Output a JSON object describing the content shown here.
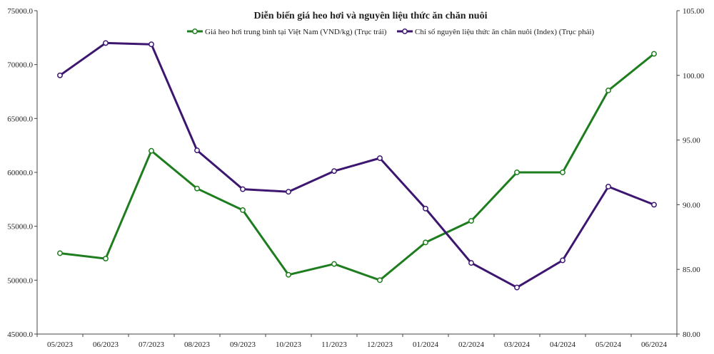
{
  "chart_data": {
    "type": "line",
    "title": "Diễn biến giá heo hơi và nguyên liệu thức ăn chăn nuôi",
    "categories": [
      "05/2023",
      "06/2023",
      "07/2023",
      "08/2023",
      "09/2023",
      "10/2023",
      "11/2023",
      "12/2023",
      "01/2024",
      "02/2024",
      "03/2024",
      "04/2024",
      "05/2024",
      "06/2024"
    ],
    "left_axis": {
      "ylim": [
        45000,
        75000
      ],
      "ticks": [
        45000,
        50000,
        55000,
        60000,
        65000,
        70000,
        75000
      ],
      "tick_labels": [
        "45000.0",
        "50000.0",
        "55000.0",
        "60000.0",
        "65000.0",
        "70000.0",
        "75000.0"
      ]
    },
    "right_axis": {
      "ylim": [
        80,
        105
      ],
      "ticks": [
        80,
        85,
        90,
        95,
        100,
        105
      ],
      "tick_labels": [
        "80.00",
        "85.00",
        "90.00",
        "95.00",
        "100.00",
        "105.00"
      ]
    },
    "series": [
      {
        "name": "Giá heo hơi trung bình tại Việt Nam (VND/kg) (Trục trái)",
        "axis": "left",
        "color": "#1e7d1e",
        "values": [
          52500,
          52000,
          62000,
          58500,
          56500,
          50500,
          51500,
          50000,
          53500,
          55500,
          60000,
          60000,
          67600,
          71000
        ]
      },
      {
        "name": "Chỉ số nguyên liệu thức ăn chăn nuôi (Index) (Trục phải)",
        "axis": "right",
        "color": "#3d1670",
        "values": [
          100.0,
          102.5,
          102.4,
          94.2,
          91.2,
          91.0,
          92.6,
          93.6,
          89.7,
          85.5,
          83.6,
          85.7,
          91.4,
          90.0
        ]
      }
    ],
    "legend_position": "top-center",
    "grid": false
  }
}
